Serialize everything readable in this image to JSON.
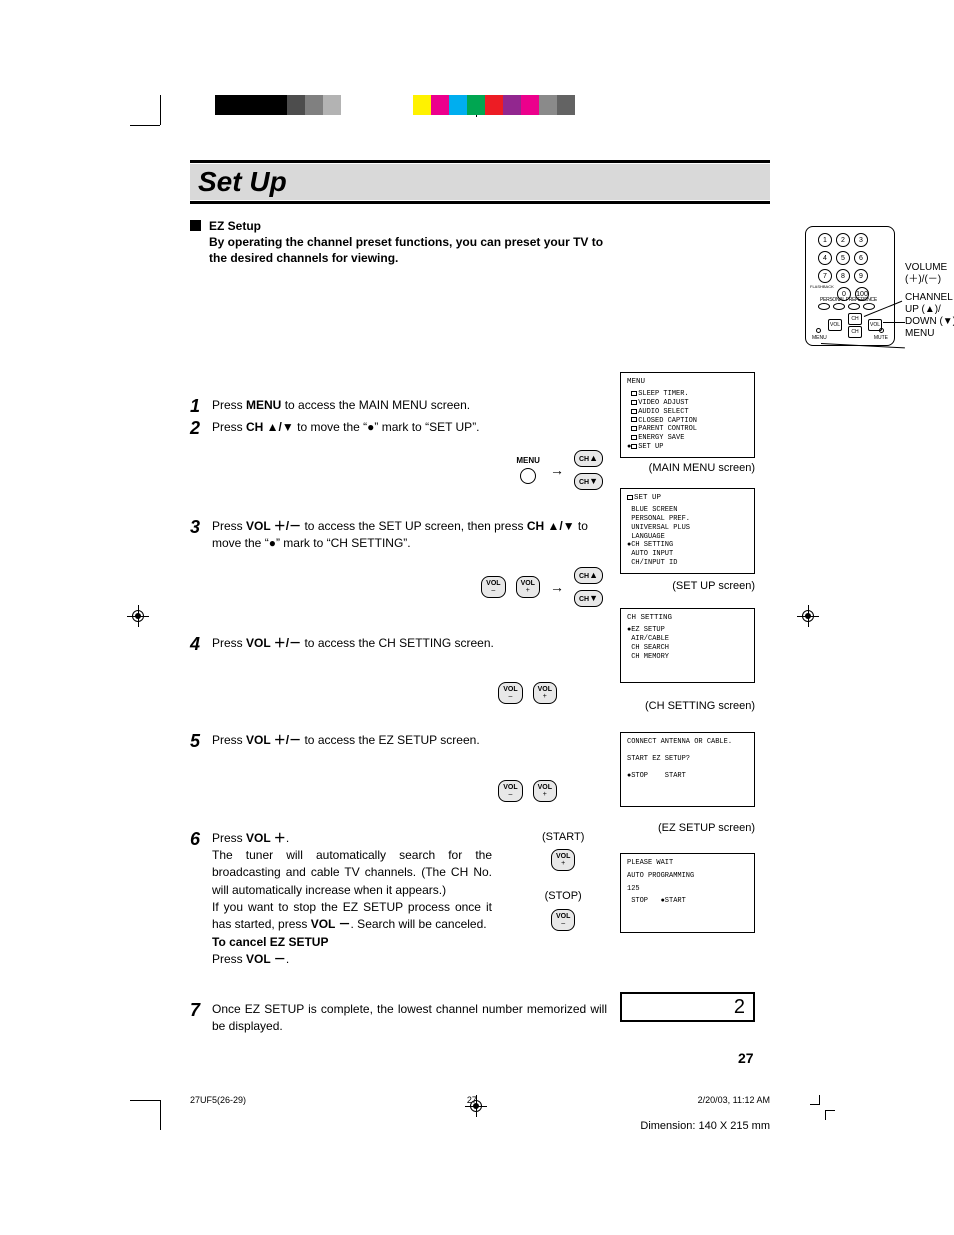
{
  "colorbar": [
    "#000000",
    "#000000",
    "#000000",
    "#000000",
    "#4d4d4d",
    "#808080",
    "#b3b3b3",
    "#ffffff",
    "#ffffff",
    "#ffffff",
    "#ffffff",
    "#fff200",
    "#ec008c",
    "#00aeef",
    "#00a651",
    "#ed1c24",
    "#92278f",
    "#ec008c",
    "#8a8a8a",
    "#636363"
  ],
  "title": "Set Up",
  "subhead_title": "EZ Setup",
  "subhead_body": "By operating the channel preset functions, you can preset your TV to the desired channels for viewing.",
  "remote": {
    "labels": {
      "volume": "VOLUME",
      "volsym": "(＋)/(－)",
      "channel": "CHANNEL",
      "up": "UP (▲)/",
      "down": "DOWN (▼)",
      "menu": "MENU"
    },
    "buttons": {
      "ch": "CH",
      "vol": "VOL",
      "menu": "MENU",
      "mute": "MUTE"
    },
    "flashback": "FLASHBACK",
    "ppref": "PERSONAL PREFERENCE",
    "numbers": [
      "1",
      "2",
      "3",
      "4",
      "5",
      "6",
      "7",
      "8",
      "9",
      "0",
      "100"
    ]
  },
  "steps": [
    {
      "n": "1",
      "html": "Press <b>MENU</b> to access the MAIN MENU screen."
    },
    {
      "n": "2",
      "html": "Press <b>CH ▲/▼</b> to move the “●” mark to “SET UP”."
    },
    {
      "n": "3",
      "html": "Press <b>VOL ＋/－</b> to access the SET UP screen, then press <b>CH ▲/▼</b> to move the “●” mark to “CH SETTING”."
    },
    {
      "n": "4",
      "html": "Press <b>VOL ＋/－</b> to access the CH SETTING screen."
    },
    {
      "n": "5",
      "html": "Press <b>VOL ＋/－</b> to access the EZ SETUP screen."
    },
    {
      "n": "6",
      "html": "Press <b>VOL ＋</b>.<br>The tuner will automatically search for the broadcasting and cable TV channels. (The CH No. will automatically increase when it appears.)<br>If you want to stop the EZ SETUP process once it has started, press <b>VOL －</b>. Search will be canceled.<br><b>To cancel EZ SETUP</b><br>Press <b>VOL －</b>."
    },
    {
      "n": "7",
      "html": "Once EZ SETUP is complete, the lowest channel number memorized will be displayed."
    }
  ],
  "pills": {
    "menu": "MENU",
    "ch": "CH",
    "vol": "VOL",
    "plus": "+",
    "minus": "–"
  },
  "step6labels": {
    "start": "(START)",
    "stop": "(STOP)"
  },
  "osd": {
    "main": {
      "title": "MENU",
      "items": [
        "SLEEP TIMER.",
        "VIDEO ADJUST",
        "AUDIO SELECT",
        "CLOSED CAPTION",
        "PARENT CONTROL",
        "ENERGY SAVE",
        "SET UP"
      ],
      "selected": 6,
      "caption": "(MAIN MENU screen)"
    },
    "setup": {
      "title": "SET UP",
      "items": [
        "BLUE SCREEN",
        "PERSONAL PREF.",
        "UNIVERSAL PLUS",
        "LANGUAGE",
        "CH SETTING",
        "AUTO INPUT",
        "CH/INPUT ID"
      ],
      "selected": 4,
      "titleIcon": true,
      "caption": "(SET UP screen)"
    },
    "chsetting": {
      "title": "CH SETTING",
      "items": [
        "EZ SETUP",
        "AIR/CABLE",
        "CH SEARCH",
        "CH MEMORY"
      ],
      "selected": 0,
      "caption": "(CH SETTING screen)"
    },
    "ezsetup": {
      "line1": "CONNECT ANTENNA OR CABLE.",
      "line2": "START EZ SETUP?",
      "opts": [
        "STOP",
        "START"
      ],
      "selected": 0,
      "caption": "(EZ SETUP screen)"
    },
    "autoprogram": {
      "line1": "PLEASE WAIT",
      "line2": "AUTO PROGRAMMING",
      "value": "125",
      "opts": [
        "STOP",
        "START"
      ],
      "selected": 1
    }
  },
  "chbox": "2",
  "pagenum": "27",
  "footer": {
    "file": "27UF5(26-29)",
    "page": "27",
    "date": "2/20/03, 11:12 AM"
  },
  "dimension": "Dimension: 140  X 215 mm"
}
